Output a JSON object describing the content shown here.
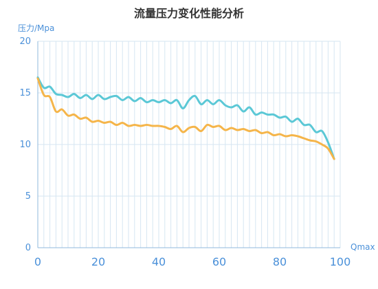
{
  "chart_data": {
    "type": "line",
    "title": "流量压力变化性能分析",
    "ylabel": "压力/Mpa",
    "xlabel": "Qmax",
    "xlim": [
      0,
      100
    ],
    "ylim": [
      0,
      20
    ],
    "x_ticks": [
      "0",
      "20",
      "40",
      "60",
      "80",
      "100"
    ],
    "y_ticks": [
      "0",
      "5",
      "10",
      "15",
      "20"
    ],
    "grid": {
      "vertical": true,
      "horizontal": true
    },
    "colors": {
      "axis_text": "#4a90d9",
      "grid": "#d6e6f2",
      "axis_line": "#8fb8de",
      "title": "#333333"
    },
    "series": [
      {
        "color": "#5bc8d6",
        "points": [
          [
            0,
            16.5
          ],
          [
            2,
            15.5
          ],
          [
            4,
            15.6
          ],
          [
            6,
            14.9
          ],
          [
            8,
            14.8
          ],
          [
            10,
            14.6
          ],
          [
            12,
            14.9
          ],
          [
            14,
            14.5
          ],
          [
            16,
            14.8
          ],
          [
            18,
            14.4
          ],
          [
            20,
            14.8
          ],
          [
            22,
            14.4
          ],
          [
            24,
            14.6
          ],
          [
            26,
            14.7
          ],
          [
            28,
            14.3
          ],
          [
            30,
            14.6
          ],
          [
            32,
            14.2
          ],
          [
            34,
            14.5
          ],
          [
            36,
            14.1
          ],
          [
            38,
            14.3
          ],
          [
            40,
            14.1
          ],
          [
            42,
            14.3
          ],
          [
            44,
            14.0
          ],
          [
            46,
            14.3
          ],
          [
            48,
            13.5
          ],
          [
            50,
            14.3
          ],
          [
            52,
            14.7
          ],
          [
            54,
            13.9
          ],
          [
            56,
            14.3
          ],
          [
            58,
            13.9
          ],
          [
            60,
            14.3
          ],
          [
            62,
            13.8
          ],
          [
            64,
            13.6
          ],
          [
            66,
            13.8
          ],
          [
            68,
            13.2
          ],
          [
            70,
            13.6
          ],
          [
            72,
            12.9
          ],
          [
            74,
            13.1
          ],
          [
            76,
            12.9
          ],
          [
            78,
            12.9
          ],
          [
            80,
            12.6
          ],
          [
            82,
            12.7
          ],
          [
            84,
            12.2
          ],
          [
            86,
            12.5
          ],
          [
            88,
            11.9
          ],
          [
            90,
            11.9
          ],
          [
            92,
            11.2
          ],
          [
            94,
            11.3
          ],
          [
            96,
            10.2
          ],
          [
            98,
            8.6
          ]
        ]
      },
      {
        "color": "#f5b54a",
        "points": [
          [
            0,
            16.4
          ],
          [
            2,
            14.8
          ],
          [
            4,
            14.6
          ],
          [
            6,
            13.2
          ],
          [
            8,
            13.4
          ],
          [
            10,
            12.8
          ],
          [
            12,
            12.9
          ],
          [
            14,
            12.5
          ],
          [
            16,
            12.6
          ],
          [
            18,
            12.2
          ],
          [
            20,
            12.3
          ],
          [
            22,
            12.1
          ],
          [
            24,
            12.2
          ],
          [
            26,
            11.9
          ],
          [
            28,
            12.1
          ],
          [
            30,
            11.8
          ],
          [
            32,
            11.9
          ],
          [
            34,
            11.8
          ],
          [
            36,
            11.9
          ],
          [
            38,
            11.8
          ],
          [
            40,
            11.8
          ],
          [
            42,
            11.7
          ],
          [
            44,
            11.5
          ],
          [
            46,
            11.8
          ],
          [
            48,
            11.2
          ],
          [
            50,
            11.6
          ],
          [
            52,
            11.7
          ],
          [
            54,
            11.3
          ],
          [
            56,
            11.9
          ],
          [
            58,
            11.7
          ],
          [
            60,
            11.8
          ],
          [
            62,
            11.4
          ],
          [
            64,
            11.6
          ],
          [
            66,
            11.4
          ],
          [
            68,
            11.5
          ],
          [
            70,
            11.3
          ],
          [
            72,
            11.4
          ],
          [
            74,
            11.1
          ],
          [
            76,
            11.2
          ],
          [
            78,
            10.9
          ],
          [
            80,
            11.0
          ],
          [
            82,
            10.8
          ],
          [
            84,
            10.9
          ],
          [
            86,
            10.8
          ],
          [
            88,
            10.6
          ],
          [
            90,
            10.4
          ],
          [
            92,
            10.3
          ],
          [
            94,
            10.0
          ],
          [
            96,
            9.6
          ],
          [
            98,
            8.6
          ]
        ]
      }
    ]
  }
}
